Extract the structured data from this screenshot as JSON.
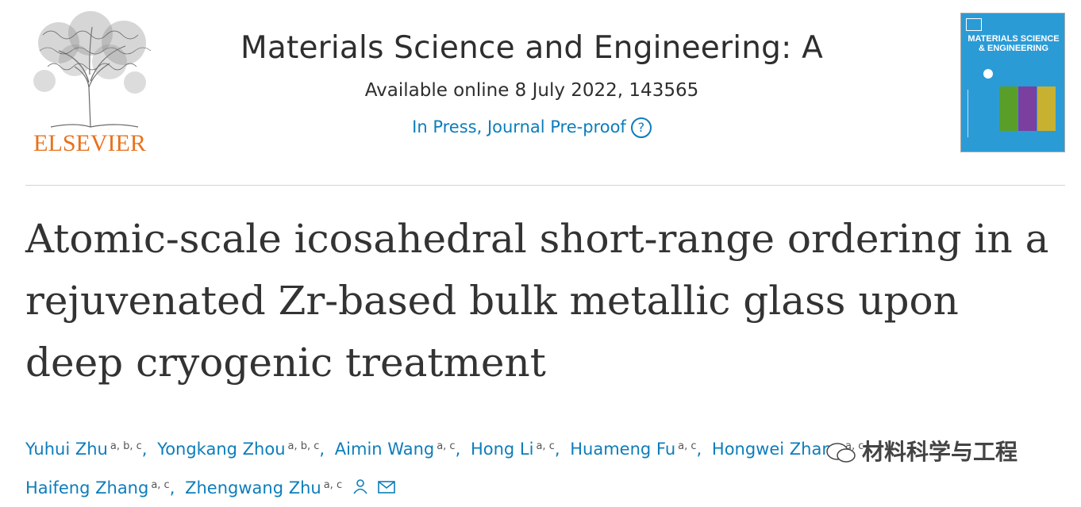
{
  "publisher": {
    "wordmark": "ELSEVIER"
  },
  "journal": {
    "title": "Materials Science and Engineering: A",
    "availability": "Available online 8 July 2022, 143565",
    "status": "In Press, Journal Pre-proof",
    "help_glyph": "?",
    "cover": {
      "title_lines": "MATERIALS SCIENCE & ENGINEERING",
      "accent": "#2b9bd6"
    }
  },
  "article": {
    "title": "Atomic-scale icosahedral short-range ordering in a rejuvenated Zr-based bulk metallic glass upon deep cryogenic treatment"
  },
  "authors": [
    {
      "name": "Yuhui Zhu",
      "affil": "a, b, c"
    },
    {
      "name": "Yongkang Zhou",
      "affil": "a, b, c"
    },
    {
      "name": "Aimin Wang",
      "affil": "a, c"
    },
    {
      "name": "Hong Li",
      "affil": "a, c"
    },
    {
      "name": "Huameng Fu",
      "affil": "a, c"
    },
    {
      "name": "Hongwei Zhang",
      "affil": "a, c"
    },
    {
      "name": "Haifeng Zhang",
      "affil": "a, c"
    },
    {
      "name": "Zhengwang Zhu",
      "affil": "a, c"
    }
  ],
  "icons": [
    "person-icon",
    "envelope-icon"
  ],
  "watermark": {
    "text": "材料科学与工程"
  },
  "colors": {
    "link": "#0c7dbb",
    "brand": "#e9711c",
    "text": "#333333"
  }
}
